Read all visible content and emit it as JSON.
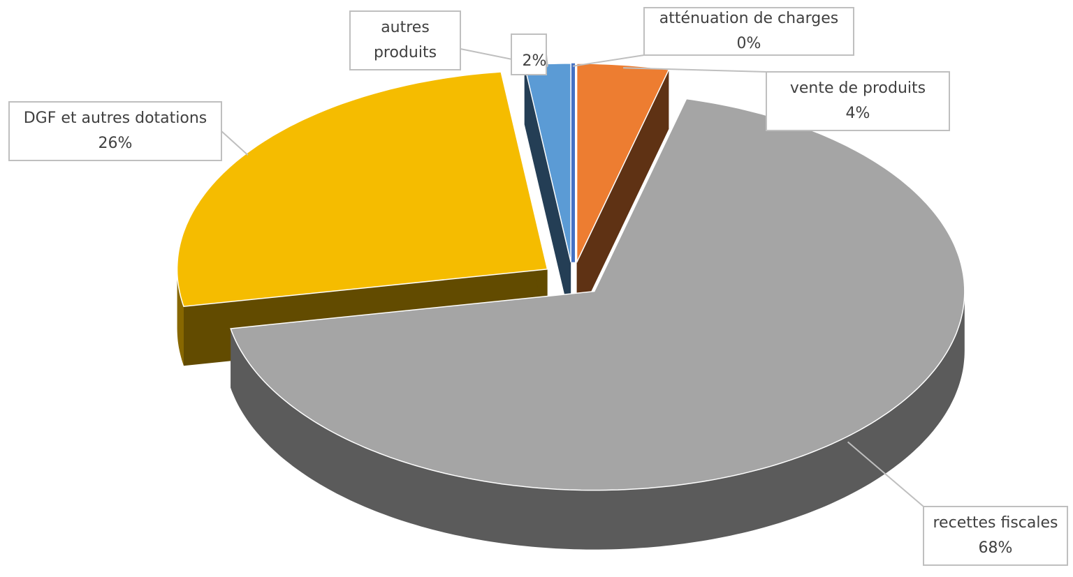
{
  "chart_data": {
    "type": "pie3d",
    "categories": [
      "atténuation de charges",
      "vente de produits",
      "recettes fiscales",
      "DGF et autres dotations",
      "autres produits"
    ],
    "values": [
      0,
      4,
      68,
      26,
      2
    ],
    "value_labels": [
      "0%",
      "4%",
      "68%",
      "26%",
      "2%"
    ],
    "colors": [
      "#4472c4",
      "#ed7d31",
      "#a5a5a5",
      "#f5bc00",
      "#5b9bd5"
    ]
  }
}
